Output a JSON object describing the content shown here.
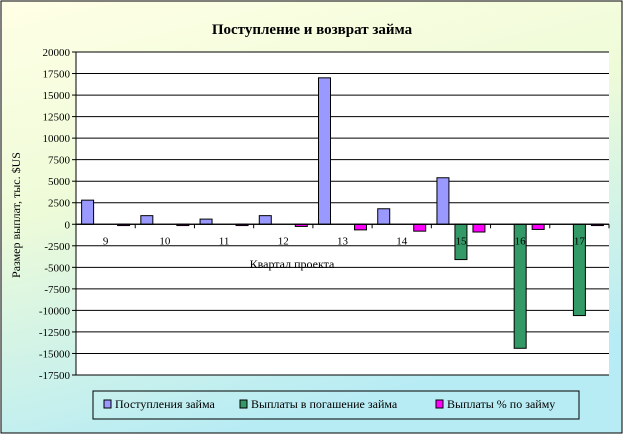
{
  "chart_data": {
    "type": "bar",
    "title": "Поступление и возврат займа",
    "xlabel": "Квартал проекта",
    "ylabel": "Размер выплат, тыс. $US",
    "categories": [
      "9",
      "10",
      "11",
      "12",
      "13",
      "14",
      "15",
      "16",
      "17"
    ],
    "ylim": [
      -17500,
      20000
    ],
    "ytick_step": 2500,
    "yticks": [
      "20000",
      "17500",
      "15000",
      "12500",
      "10000",
      "7500",
      "5000",
      "2500",
      "0",
      "-2500",
      "-5000",
      "-7500",
      "-10000",
      "-12500",
      "-15000",
      "-17500"
    ],
    "grid": true,
    "legend_position": "bottom",
    "series": [
      {
        "name": "Поступления займа",
        "color": "#9999FF",
        "values": [
          2800,
          1000,
          600,
          1000,
          17000,
          1800,
          5400,
          0,
          0
        ]
      },
      {
        "name": "Выплаты в погашение займа",
        "color": "#339966",
        "values": [
          0,
          0,
          0,
          0,
          0,
          0,
          -4100,
          -14400,
          -10600
        ]
      },
      {
        "name": "Выплаты % по займу",
        "color": "#FF00FF",
        "values": [
          -150,
          -150,
          -150,
          -250,
          -650,
          -800,
          -900,
          -600,
          -150
        ]
      }
    ]
  }
}
